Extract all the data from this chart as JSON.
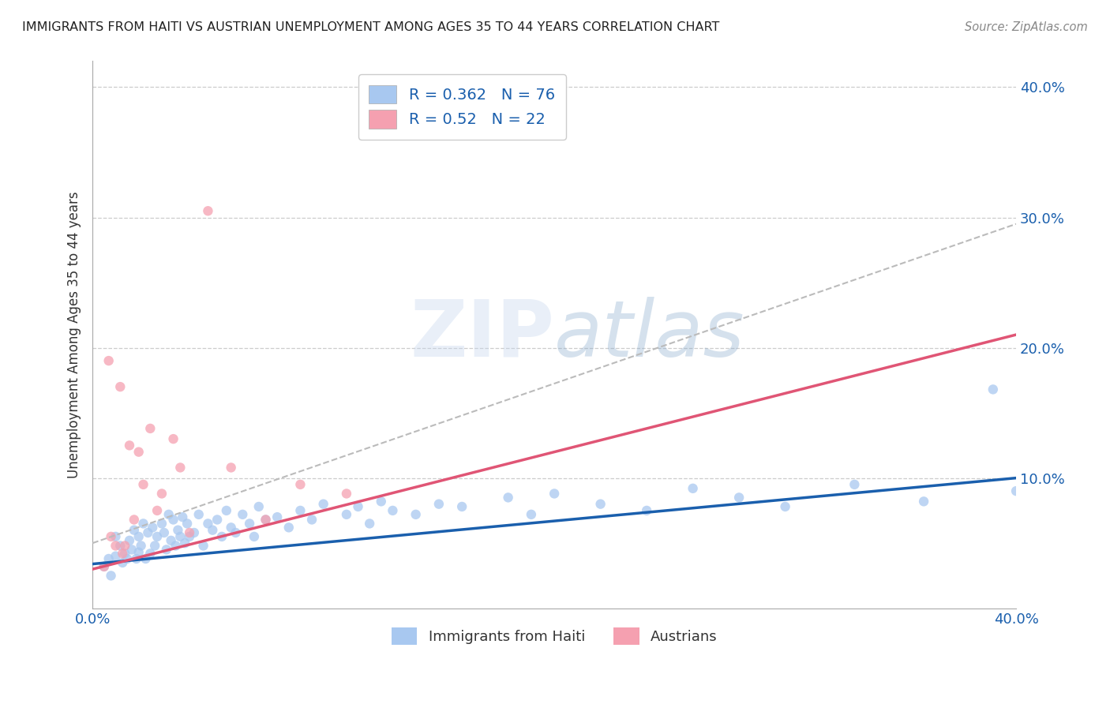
{
  "title": "IMMIGRANTS FROM HAITI VS AUSTRIAN UNEMPLOYMENT AMONG AGES 35 TO 44 YEARS CORRELATION CHART",
  "source": "Source: ZipAtlas.com",
  "ylabel": "Unemployment Among Ages 35 to 44 years",
  "xlabel": "",
  "xlim": [
    0.0,
    0.4
  ],
  "ylim": [
    0.0,
    0.42
  ],
  "xticks": [
    0.0,
    0.05,
    0.1,
    0.15,
    0.2,
    0.25,
    0.3,
    0.35,
    0.4
  ],
  "yticks": [
    0.1,
    0.2,
    0.3,
    0.4
  ],
  "ytick_labels": [
    "10.0%",
    "20.0%",
    "30.0%",
    "40.0%"
  ],
  "haiti_color": "#a8c8f0",
  "austria_color": "#f5a0b0",
  "haiti_line_color": "#1a5fad",
  "austria_line_color": "#e05575",
  "dashed_line_color": "#bbbbbb",
  "haiti_R": 0.362,
  "haiti_N": 76,
  "austria_R": 0.52,
  "austria_N": 22,
  "background_color": "#ffffff",
  "grid_color": "#cccccc",
  "haiti_scatter_x": [
    0.005,
    0.007,
    0.008,
    0.01,
    0.01,
    0.012,
    0.013,
    0.014,
    0.015,
    0.016,
    0.017,
    0.018,
    0.019,
    0.02,
    0.02,
    0.021,
    0.022,
    0.023,
    0.024,
    0.025,
    0.026,
    0.027,
    0.028,
    0.03,
    0.031,
    0.032,
    0.033,
    0.034,
    0.035,
    0.036,
    0.037,
    0.038,
    0.039,
    0.04,
    0.041,
    0.042,
    0.044,
    0.046,
    0.048,
    0.05,
    0.052,
    0.054,
    0.056,
    0.058,
    0.06,
    0.062,
    0.065,
    0.068,
    0.07,
    0.072,
    0.075,
    0.08,
    0.085,
    0.09,
    0.095,
    0.1,
    0.11,
    0.115,
    0.12,
    0.125,
    0.13,
    0.14,
    0.15,
    0.16,
    0.18,
    0.19,
    0.2,
    0.22,
    0.24,
    0.26,
    0.28,
    0.3,
    0.33,
    0.36,
    0.39,
    0.4
  ],
  "haiti_scatter_y": [
    0.032,
    0.038,
    0.025,
    0.055,
    0.04,
    0.048,
    0.035,
    0.042,
    0.038,
    0.052,
    0.045,
    0.06,
    0.038,
    0.043,
    0.055,
    0.048,
    0.065,
    0.038,
    0.058,
    0.042,
    0.062,
    0.048,
    0.055,
    0.065,
    0.058,
    0.045,
    0.072,
    0.052,
    0.068,
    0.048,
    0.06,
    0.055,
    0.07,
    0.05,
    0.065,
    0.055,
    0.058,
    0.072,
    0.048,
    0.065,
    0.06,
    0.068,
    0.055,
    0.075,
    0.062,
    0.058,
    0.072,
    0.065,
    0.055,
    0.078,
    0.068,
    0.07,
    0.062,
    0.075,
    0.068,
    0.08,
    0.072,
    0.078,
    0.065,
    0.082,
    0.075,
    0.072,
    0.08,
    0.078,
    0.085,
    0.072,
    0.088,
    0.08,
    0.075,
    0.092,
    0.085,
    0.078,
    0.095,
    0.082,
    0.168,
    0.09
  ],
  "austria_scatter_x": [
    0.005,
    0.007,
    0.008,
    0.01,
    0.012,
    0.013,
    0.014,
    0.016,
    0.018,
    0.02,
    0.022,
    0.025,
    0.028,
    0.03,
    0.035,
    0.038,
    0.042,
    0.05,
    0.06,
    0.075,
    0.09,
    0.11
  ],
  "austria_scatter_y": [
    0.032,
    0.19,
    0.055,
    0.048,
    0.17,
    0.042,
    0.048,
    0.125,
    0.068,
    0.12,
    0.095,
    0.138,
    0.075,
    0.088,
    0.13,
    0.108,
    0.058,
    0.305,
    0.108,
    0.068,
    0.095,
    0.088
  ],
  "haiti_trend_x0": 0.0,
  "haiti_trend_y0": 0.034,
  "haiti_trend_x1": 0.4,
  "haiti_trend_y1": 0.1,
  "austria_trend_x0": 0.0,
  "austria_trend_y0": 0.03,
  "austria_trend_x1": 0.4,
  "austria_trend_y1": 0.21,
  "dashed_trend_x0": 0.0,
  "dashed_trend_y0": 0.05,
  "dashed_trend_x1": 0.4,
  "dashed_trend_y1": 0.295
}
